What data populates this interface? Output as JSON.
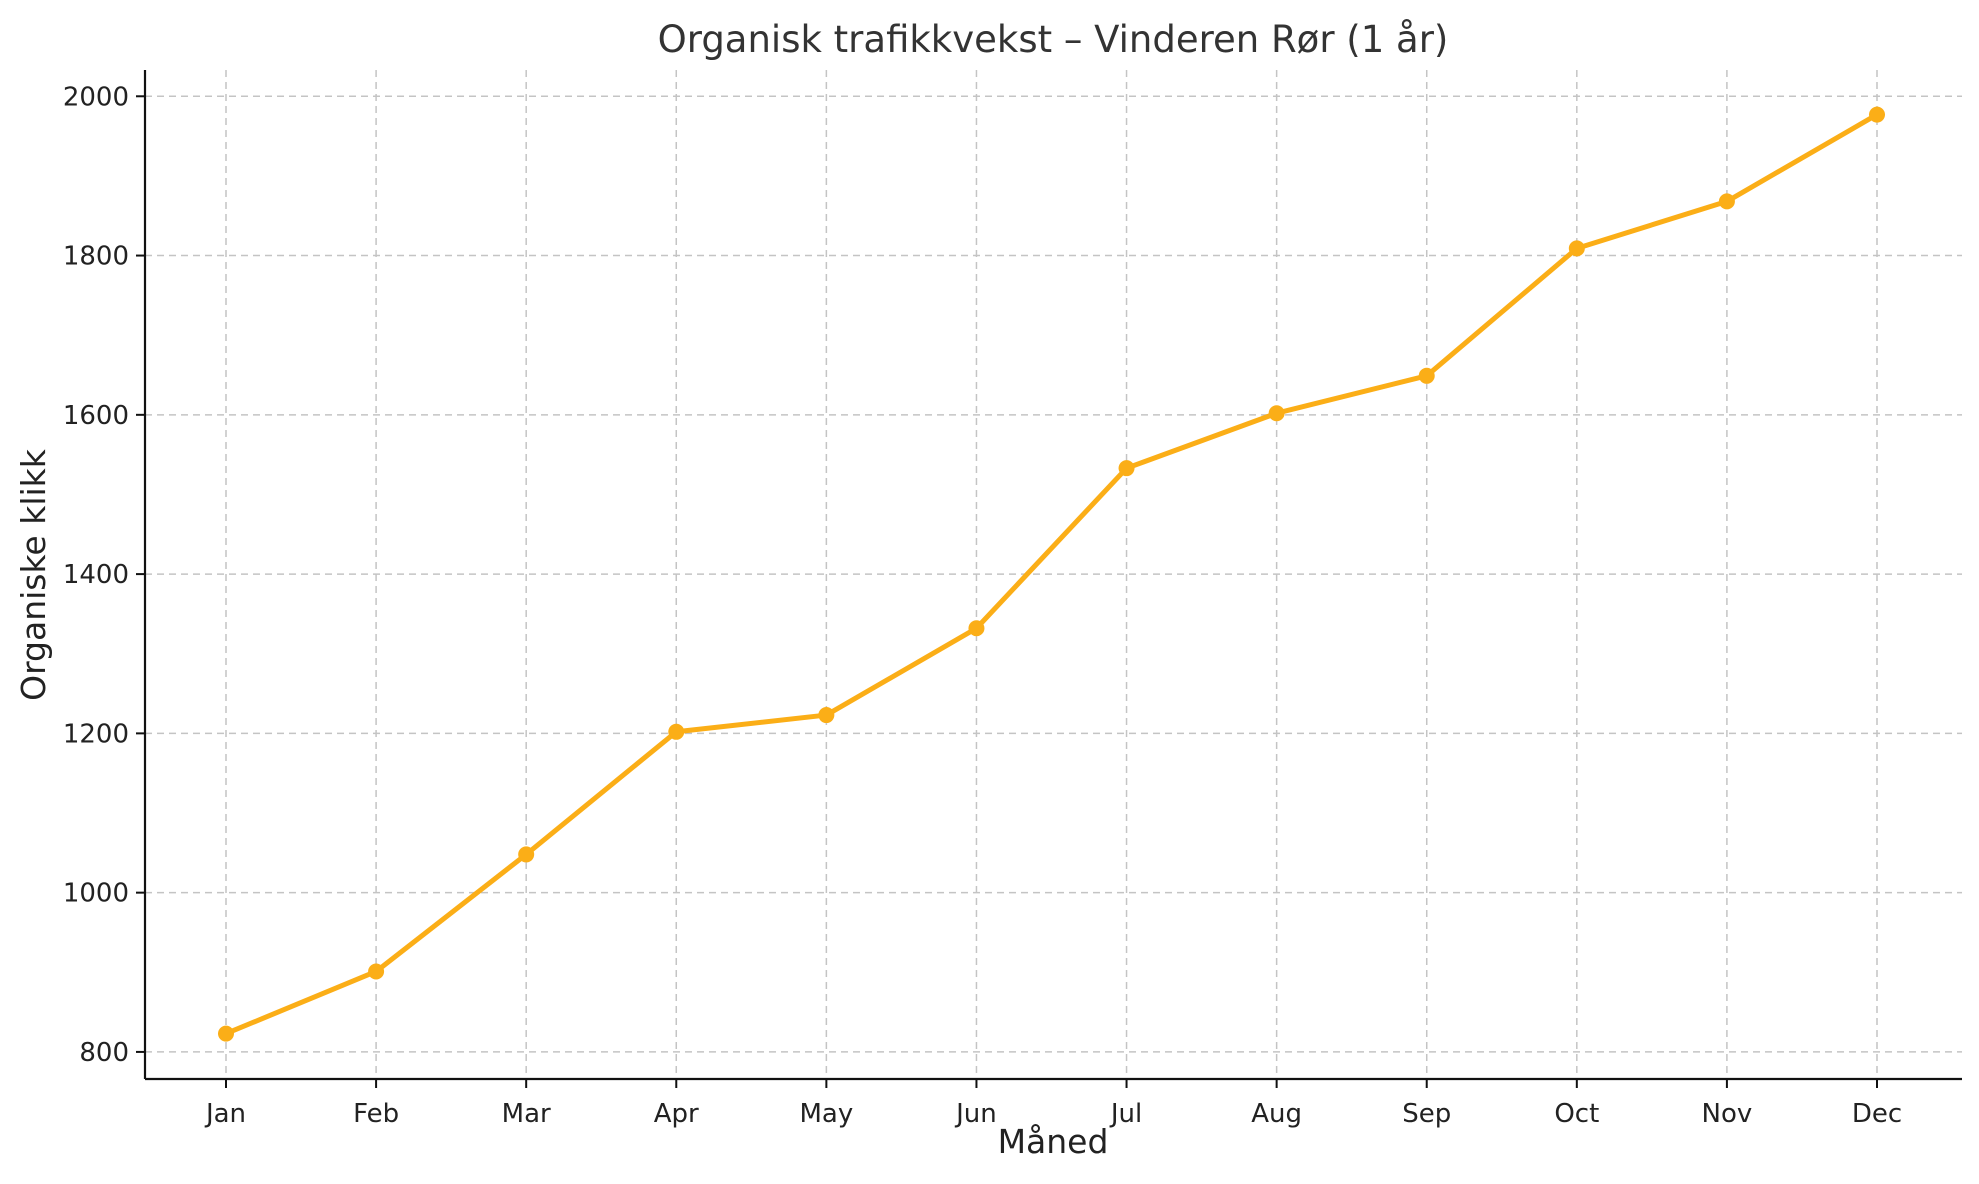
{
  "chart_data": {
    "type": "line",
    "title": "Organisk trafikkvekst – Vinderen Rør (1 år)",
    "xlabel": "Måned",
    "ylabel": "Organiske klikk",
    "categories": [
      "Jan",
      "Feb",
      "Mar",
      "Apr",
      "May",
      "Jun",
      "Jul",
      "Aug",
      "Sep",
      "Oct",
      "Nov",
      "Dec"
    ],
    "series": [
      {
        "values": [
          823,
          901,
          1048,
          1202,
          1223,
          1332,
          1533,
          1602,
          1649,
          1809,
          1868,
          1977
        ],
        "color": "#FBAE17"
      }
    ],
    "yticks": [
      800,
      1000,
      1200,
      1400,
      1600,
      1800,
      2000
    ],
    "ylim": [
      766,
      2033
    ],
    "grid": true,
    "marker": "circle",
    "legend": "none"
  }
}
